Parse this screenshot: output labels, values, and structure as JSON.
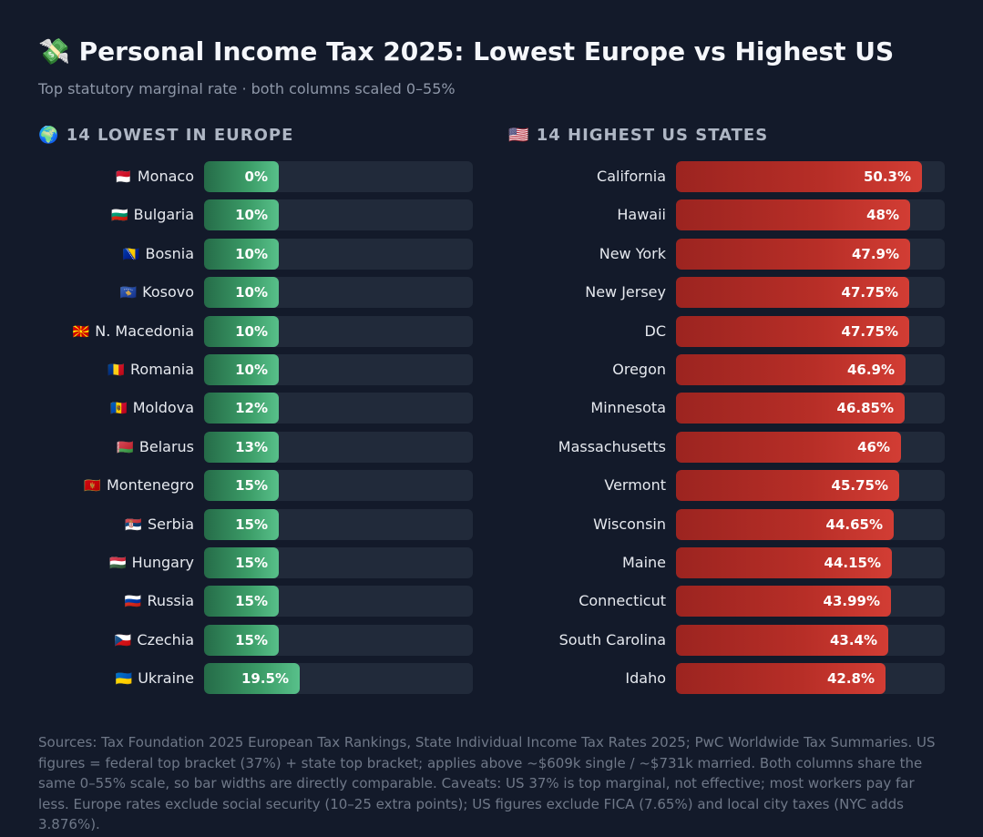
{
  "header": {
    "icon": "money-with-wings-icon",
    "emoji": "💸",
    "title": "Personal Income Tax 2025: Lowest Europe vs Highest US",
    "subtitle": "Top statutory marginal rate · both columns scaled 0–55%"
  },
  "columns": {
    "left": {
      "emoji": "🌍",
      "icon": "globe-icon",
      "title": "14 LOWEST IN EUROPE"
    },
    "right": {
      "emoji": "🇺🇸",
      "icon": "us-flag-icon",
      "title": "14 HIGHEST US STATES"
    }
  },
  "colors": {
    "background": "#131a2a",
    "track": "#212a3a",
    "europe_bar": "#3c9d68",
    "us_bar": "#b72e27"
  },
  "chart_data": [
    {
      "type": "bar",
      "orientation": "horizontal",
      "title": "14 LOWEST IN EUROPE",
      "xlim": [
        0,
        55
      ],
      "categories": [
        "Monaco",
        "Bulgaria",
        "Bosnia",
        "Kosovo",
        "N. Macedonia",
        "Romania",
        "Moldova",
        "Belarus",
        "Montenegro",
        "Serbia",
        "Hungary",
        "Russia",
        "Czechia",
        "Ukraine"
      ],
      "flags": [
        "🇲🇨",
        "🇧🇬",
        "🇧🇦",
        "🇽🇰",
        "🇲🇰",
        "🇷🇴",
        "🇲🇩",
        "🇧🇾",
        "🇲🇪",
        "🇷🇸",
        "🇭🇺",
        "🇷🇺",
        "🇨🇿",
        "🇺🇦"
      ],
      "values": [
        0,
        10,
        10,
        10,
        10,
        10,
        12,
        13,
        15,
        15,
        15,
        15,
        15,
        19.5
      ],
      "labels": [
        "0%",
        "10%",
        "10%",
        "10%",
        "10%",
        "10%",
        "12%",
        "13%",
        "15%",
        "15%",
        "15%",
        "15%",
        "15%",
        "19.5%"
      ],
      "color": "#3c9d68"
    },
    {
      "type": "bar",
      "orientation": "horizontal",
      "title": "14 HIGHEST US STATES",
      "xlim": [
        0,
        55
      ],
      "categories": [
        "California",
        "Hawaii",
        "New York",
        "New Jersey",
        "DC",
        "Oregon",
        "Minnesota",
        "Massachusetts",
        "Vermont",
        "Wisconsin",
        "Maine",
        "Connecticut",
        "South Carolina",
        "Idaho"
      ],
      "values": [
        50.3,
        48,
        47.9,
        47.75,
        47.75,
        46.9,
        46.85,
        46,
        45.75,
        44.65,
        44.15,
        43.99,
        43.4,
        42.8
      ],
      "labels": [
        "50.3%",
        "48%",
        "47.9%",
        "47.75%",
        "47.75%",
        "46.9%",
        "46.85%",
        "46%",
        "45.75%",
        "44.65%",
        "44.15%",
        "43.99%",
        "43.4%",
        "42.8%"
      ],
      "color": "#b72e27"
    }
  ],
  "footer": {
    "sources": "Sources: Tax Foundation 2025 European Tax Rankings, State Individual Income Tax Rates 2025; PwC Worldwide Tax Summaries. US figures = federal top bracket (37%) + state top bracket; applies above ~$609k single / ~$731k married. Both columns share the same 0–55% scale, so bar widths are directly comparable. Caveats: US 37% is top marginal, not effective; most workers pay far less. Europe rates exclude social security (10–25 extra points); US figures exclude FICA (7.65%) and local city taxes (NYC adds 3.876%)."
  }
}
